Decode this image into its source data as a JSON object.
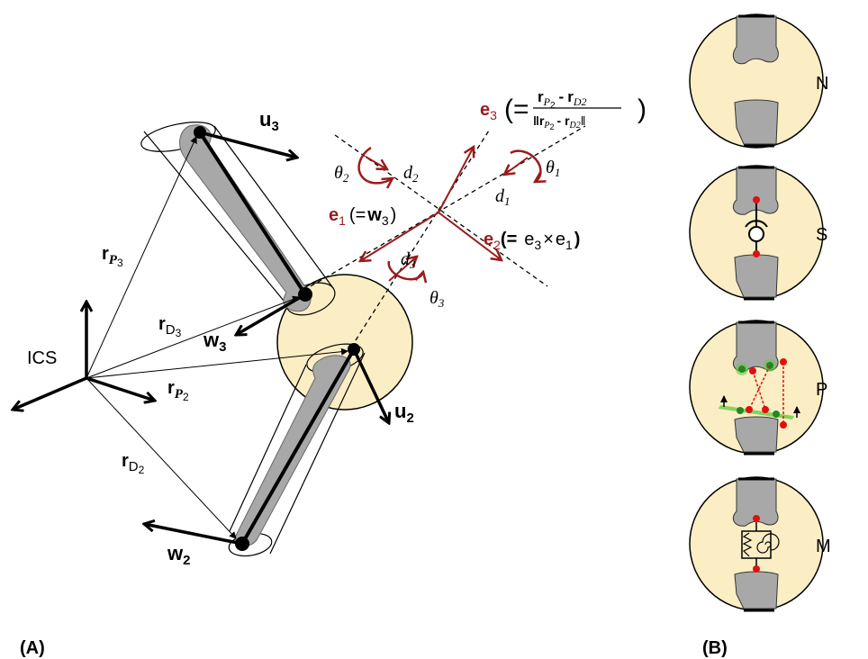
{
  "panel_a": {
    "panel_label": "(A)",
    "ics_label": "ICS",
    "vectors": {
      "u3": {
        "main": "u",
        "sub": "3"
      },
      "w3": {
        "main": "w",
        "sub": "3"
      },
      "u2": {
        "main": "u",
        "sub": "2"
      },
      "w2": {
        "main": "w",
        "sub": "2"
      },
      "rP3": {
        "main": "r",
        "sub": "P",
        "sub2": "3"
      },
      "rD3": {
        "main": "r",
        "sub": "D",
        "sub2": "3"
      },
      "rP2": {
        "main": "r",
        "sub": "P",
        "sub2": "2"
      },
      "rD2": {
        "main": "r",
        "sub": "D",
        "sub2": "2"
      }
    },
    "axes": {
      "e1": {
        "main": "e",
        "sub": "1",
        "def_open": "(=",
        "def_main": "w",
        "def_sub": "3",
        "def_close": ")"
      },
      "e2": {
        "main": "e",
        "sub": "2",
        "def": "(=",
        "def_a": "e",
        "def_a_sub": "3",
        "times": "×",
        "def_b": "e",
        "def_b_sub": "1",
        "close": ")"
      },
      "e3": {
        "main": "e",
        "sub": "3",
        "eq": "(=",
        "num_a": "r",
        "num_a_sub": "P",
        "num_a_sub2": "2",
        "minus": "-",
        "num_b": "r",
        "num_b_sub": "D2",
        "den_open": "‖r",
        "den_a_sub": "P",
        "den_a_sub2": "2",
        "den_minus": "- r",
        "den_b_sub": "D2",
        "den_close": "‖",
        "close": ")"
      }
    },
    "rotations": {
      "theta1": {
        "sym": "θ",
        "sub": "1"
      },
      "theta2": {
        "sym": "θ",
        "sub": "2"
      },
      "theta3": {
        "sym": "θ",
        "sub": "3"
      }
    },
    "translations": {
      "d1": {
        "sym": "d",
        "sub": "1"
      },
      "d2": {
        "sym": "d",
        "sub": "2"
      },
      "d3": {
        "sym": "d",
        "sub": "3"
      }
    }
  },
  "panel_b": {
    "panel_label": "(B)",
    "models": [
      {
        "label": "N"
      },
      {
        "label": "S"
      },
      {
        "label": "P"
      },
      {
        "label": "M"
      }
    ]
  },
  "colors": {
    "joint_fill": "#fbeec4",
    "bone_fill": "#a8a8a8",
    "axis_red": "#9b1b1b",
    "marker_red": "#e01010",
    "marker_green": "#22aa22"
  }
}
